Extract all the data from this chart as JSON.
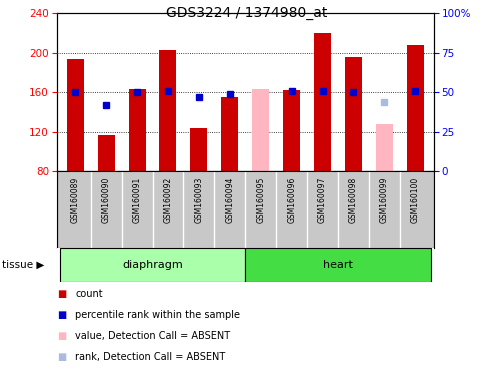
{
  "title": "GDS3224 / 1374980_at",
  "samples": [
    "GSM160089",
    "GSM160090",
    "GSM160091",
    "GSM160092",
    "GSM160093",
    "GSM160094",
    "GSM160095",
    "GSM160096",
    "GSM160097",
    "GSM160098",
    "GSM160099",
    "GSM160100"
  ],
  "count_values": [
    194,
    116,
    163,
    203,
    124,
    155,
    null,
    162,
    220,
    196,
    null,
    208
  ],
  "count_absent_values": [
    null,
    null,
    null,
    null,
    null,
    null,
    163,
    null,
    null,
    null,
    128,
    null
  ],
  "rank_values": [
    50,
    42,
    50,
    51,
    47,
    49,
    null,
    51,
    51,
    50,
    null,
    51
  ],
  "rank_absent_values": [
    null,
    null,
    null,
    null,
    null,
    null,
    null,
    null,
    null,
    null,
    44,
    null
  ],
  "ylim_left": [
    80,
    240
  ],
  "ylim_right": [
    0,
    100
  ],
  "yticks_left": [
    80,
    120,
    160,
    200,
    240
  ],
  "yticks_right": [
    0,
    25,
    50,
    75,
    100
  ],
  "bar_width": 0.55,
  "red_color": "#CC0000",
  "pink_color": "#FFB6C1",
  "blue_color": "#0000CC",
  "light_blue_color": "#AABBDD",
  "tissue_color_diaphragm": "#AAFFAA",
  "tissue_color_heart": "#44DD44",
  "tick_area_color": "#C8C8C8"
}
